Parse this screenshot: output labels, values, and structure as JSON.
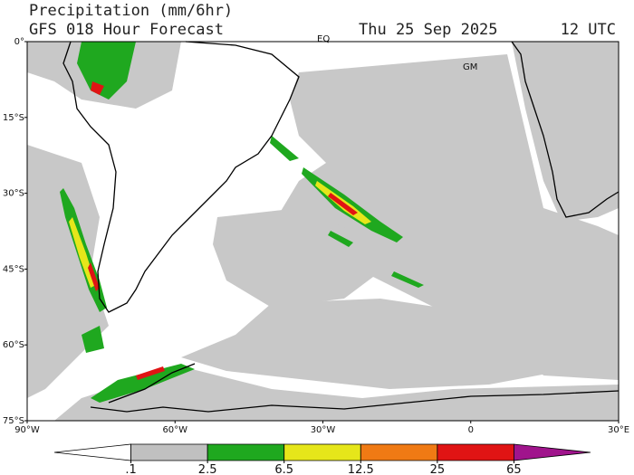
{
  "header": {
    "title": "Precipitation (mm/6hr)",
    "subtitle": "GFS 018 Hour Forecast",
    "date": "Thu 25 Sep 2025",
    "time": "12 UTC"
  },
  "map": {
    "lat_labels": [
      "0°",
      "15°S",
      "30°S",
      "45°S",
      "60°S",
      "75°S"
    ],
    "lon_labels": [
      "90°W",
      "60°W",
      "30°W",
      "0",
      "30°E"
    ],
    "places": [
      "EQ",
      "GM"
    ]
  },
  "colorbar": {
    "levels": [
      {
        "value": 0.1,
        "label": ".1"
      },
      2.5,
      6.5,
      12.5,
      25,
      65
    ],
    "colors": [
      "#ffffff",
      "#c0c0c0",
      "#1fa81f",
      "#e6e61a",
      "#f07a14",
      "#e01414",
      "#a0148c"
    ]
  }
}
